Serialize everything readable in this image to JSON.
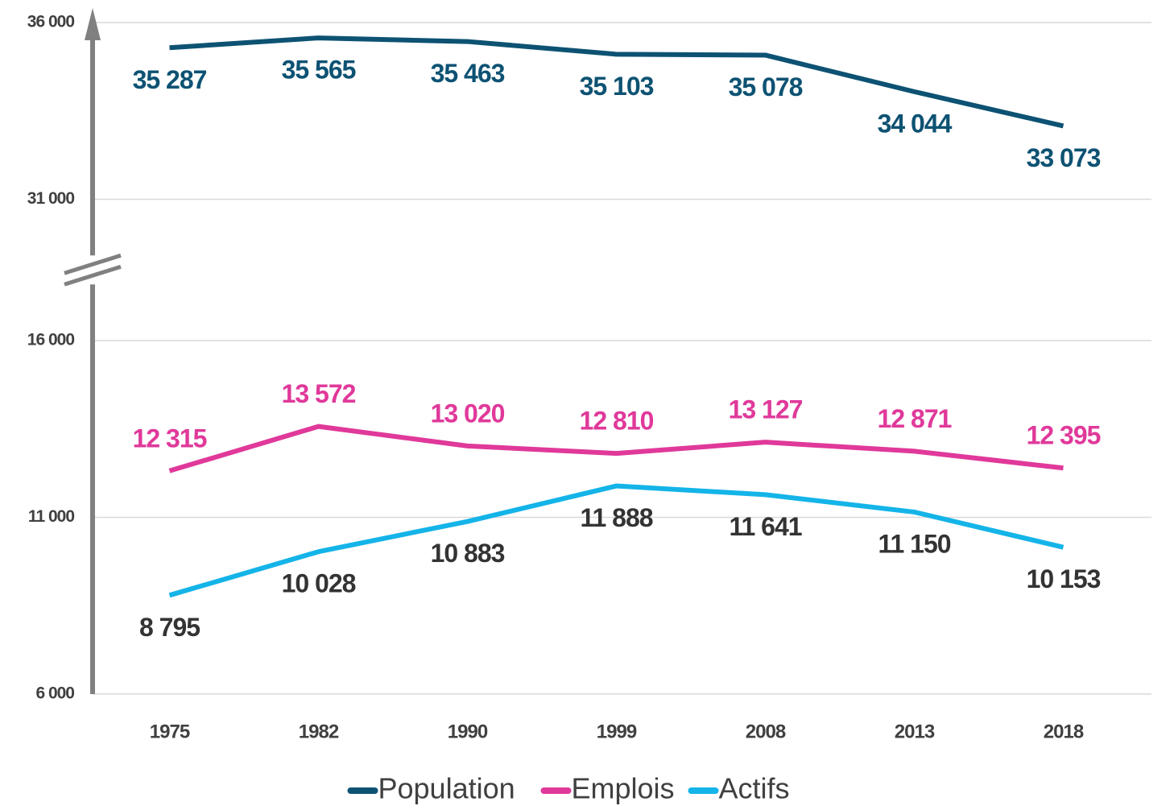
{
  "chart_data": {
    "type": "line",
    "categories": [
      "1975",
      "1982",
      "1990",
      "1999",
      "2008",
      "2013",
      "2018"
    ],
    "series": [
      {
        "name": "Population",
        "color": "#0d5273",
        "label_color": "#0d5273",
        "label_position": "below",
        "values": [
          35287,
          35565,
          35463,
          35103,
          35078,
          34044,
          33073
        ],
        "value_labels": [
          "35 287",
          "35 565",
          "35 463",
          "35 103",
          "35 078",
          "34 044",
          "33 073"
        ]
      },
      {
        "name": "Emplois",
        "color": "#e0399a",
        "label_color": "#e0399a",
        "label_position": "above",
        "values": [
          12315,
          13572,
          13020,
          12810,
          13127,
          12871,
          12395
        ],
        "value_labels": [
          "12 315",
          "13 572",
          "13 020",
          "12 810",
          "13 127",
          "12 871",
          "12 395"
        ]
      },
      {
        "name": "Actifs",
        "color": "#14b4e8",
        "label_color": "#333333",
        "label_position": "below",
        "values": [
          8795,
          10028,
          10883,
          11888,
          11641,
          11150,
          10153
        ],
        "value_labels": [
          "8 795",
          "10 028",
          "10 883",
          "11 888",
          "11 641",
          "11 150",
          "10 153"
        ]
      }
    ],
    "ylim": [
      6000,
      36000
    ],
    "ybreak": [
      18000,
      29000
    ],
    "yticks": [
      {
        "value": 6000,
        "label": "6 000"
      },
      {
        "value": 11000,
        "label": "11 000"
      },
      {
        "value": 16000,
        "label": "16 000"
      },
      {
        "value": 31000,
        "label": "31 000"
      },
      {
        "value": 36000,
        "label": "36 000"
      }
    ],
    "grid": true,
    "legend": "bottom"
  }
}
